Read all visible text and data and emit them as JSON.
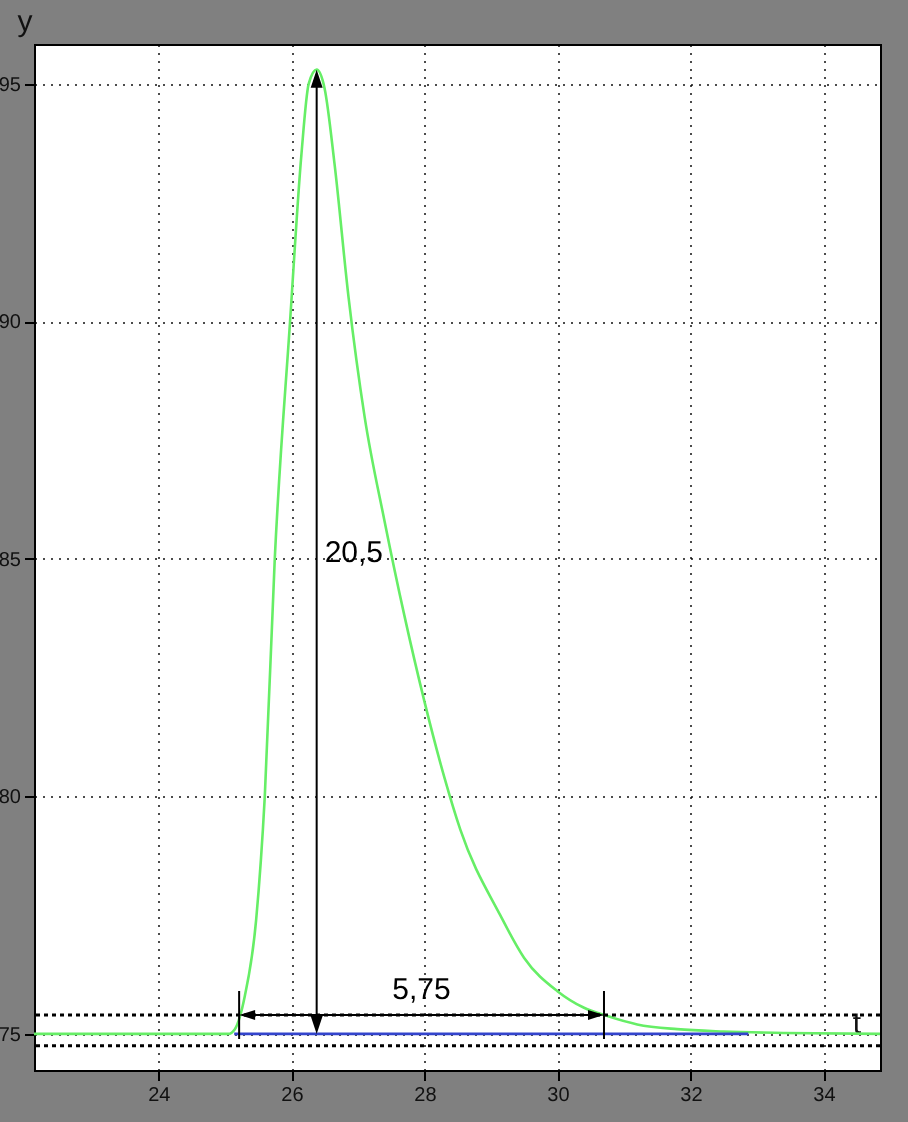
{
  "chart_data": {
    "type": "line",
    "xlabel": "t",
    "ylabel": "y",
    "xlim": [
      22.13,
      34.85
    ],
    "ylim": [
      74.24,
      95.84
    ],
    "xticks": [
      24,
      26,
      28,
      30,
      32,
      34
    ],
    "yticks": [
      75,
      80,
      85,
      90,
      95
    ],
    "grid": true,
    "marker": "none",
    "series": [
      {
        "color": "#66ee66",
        "x": [
          22.13,
          25.05,
          25.15,
          25.3,
          25.47,
          25.6,
          25.75,
          25.98,
          26.15,
          26.26,
          26.38,
          26.5,
          26.65,
          26.86,
          27.1,
          27.4,
          27.7,
          28.0,
          28.3,
          28.54,
          29.14,
          29.5,
          30.0,
          30.4,
          30.74,
          31.2,
          31.8,
          32.5,
          33.4,
          34.85
        ],
        "values": [
          75,
          75,
          75.1,
          75.8,
          77.4,
          80,
          85,
          90,
          93.5,
          95,
          95.3,
          94.9,
          93.3,
          90.5,
          88,
          85.8,
          83.8,
          82,
          80.4,
          79.3,
          77.5,
          76.6,
          75.9,
          75.55,
          75.38,
          75.2,
          75.1,
          75.05,
          75.02,
          75
        ]
      },
      {
        "color": "#3344cc",
        "x": [
          25.14,
          32.87
        ],
        "values": [
          75,
          75
        ]
      }
    ],
    "ref_lines": [
      {
        "axis": "y",
        "value": 75.4,
        "label": null,
        "color": "#000000",
        "line_style": "dotted"
      },
      {
        "axis": "y",
        "value": 74.75,
        "label": null,
        "color": "#000000",
        "line_style": "dotted"
      }
    ],
    "annotations": [
      "20,5",
      "5,75"
    ]
  }
}
